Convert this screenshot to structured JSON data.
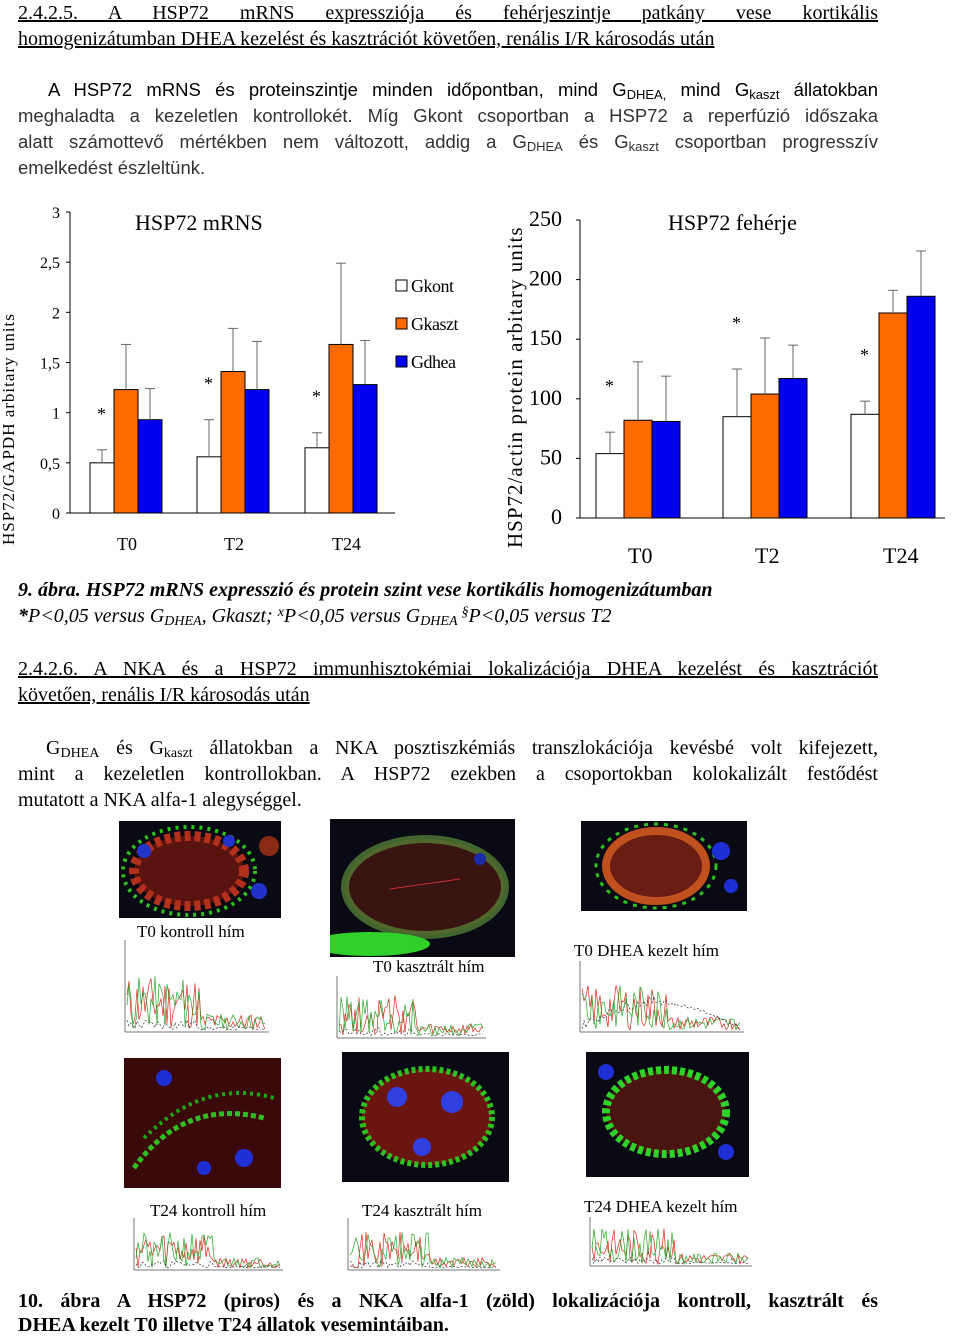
{
  "section1": {
    "heading_line1": "2.4.2.5.  A  HSP72  mRNS  expressziója  és  fehérjeszintje  patkány  vese  kortikális",
    "heading_line2": "homogenizátumban DHEA kezelést és kasztrációt követően, renális I/R károsodás után",
    "para_line1_a": "A HSP72 mRNS és proteinszintje minden időpontban, mind G",
    "para_line1_sub1": "DHEA,",
    "para_line1_b": " mind  G",
    "para_line1_sub2": "kaszt",
    "para_line1_c": " állatokban",
    "para_line2": "meghaladta a kezeletlen kontrollokét. Míg Gkont csoportban a HSP72 a reperfúzió időszaka",
    "para_line3_a": "alatt számottevő mértékben nem változott, addig a G",
    "para_line3_sub1": "DHEA",
    "para_line3_b": " és G",
    "para_line3_sub2": "kaszt",
    "para_line3_c": " csoportban progresszív",
    "para_line4": "emelkedést észleltünk."
  },
  "chart_data": [
    {
      "type": "bar",
      "title": "HSP72 mRNS",
      "ylabel": "HSP72/GAPDH arbitary units",
      "categories": [
        "T0",
        "T2",
        "T24"
      ],
      "ylim": [
        0,
        3
      ],
      "yticks": [
        "0",
        "0,5",
        "1",
        "1,5",
        "2",
        "2,5",
        "3"
      ],
      "series": [
        {
          "name": "Gkont",
          "values": [
            0.5,
            0.56,
            0.65
          ],
          "err": [
            0.13,
            0.37,
            0.15
          ]
        },
        {
          "name": "Gkaszt",
          "values": [
            1.23,
            1.41,
            1.68
          ],
          "err": [
            0.45,
            0.43,
            0.81
          ]
        },
        {
          "name": "Gdhea",
          "values": [
            0.93,
            1.23,
            1.28
          ],
          "err": [
            0.31,
            0.48,
            0.44
          ]
        }
      ],
      "annotations": [
        {
          "category": "T0",
          "text": "*"
        },
        {
          "category": "T2",
          "text": "*"
        },
        {
          "category": "T24",
          "text": "*"
        }
      ],
      "legend": "right"
    },
    {
      "type": "bar",
      "title": "HSP72 fehérje",
      "ylabel": "HSP72/actin protein arbitary units",
      "categories": [
        "T0",
        "T2",
        "T24"
      ],
      "ylim": [
        0,
        250
      ],
      "yticks": [
        "0",
        "50",
        "100",
        "150",
        "200",
        "250"
      ],
      "series": [
        {
          "name": "Gkont",
          "values": [
            54,
            85,
            87
          ],
          "err": [
            18,
            40,
            11
          ]
        },
        {
          "name": "Gkaszt",
          "values": [
            82,
            104,
            172
          ],
          "err": [
            49,
            47,
            19
          ]
        },
        {
          "name": "Gdhea",
          "values": [
            81,
            117,
            186
          ],
          "err": [
            38,
            28,
            38
          ]
        }
      ],
      "annotations": [
        {
          "category": "T0",
          "text": "*"
        },
        {
          "category": "T2",
          "text": "*"
        },
        {
          "category": "T24",
          "text": "*"
        }
      ],
      "legend": "none"
    }
  ],
  "legend": {
    "items": [
      "Gkont",
      "Gkaszt",
      "Gdhea"
    ],
    "colors": [
      "#ffffff",
      "#ff6a00",
      "#0000ee"
    ]
  },
  "figure9": {
    "caption_a": "9. ábra.",
    "caption_b": " HSP72 mRNS expresszió és protein szint vese kortikális homogenizátumban",
    "note_a": "*",
    "note_b": "P<0,05 versus G",
    "note_sub1": "DHEA",
    "note_c": ", Gkaszt; ",
    "note_sup1": "x",
    "note_d": "P<0,05 versus G",
    "note_sub2": "DHEA",
    "note_sup2": "§",
    "note_e": "P<0,05 versus T2"
  },
  "section2": {
    "heading_line1": "2.4.2.6. A NKA és a HSP72 immunhisztokémiai lokalizációja  DHEA kezelést és kasztrációt",
    "heading_line2": "követően, renális I/R károsodás után",
    "para_line1_a": "G",
    "para_line1_sub1": "DHEA",
    "para_line1_b": " és G",
    "para_line1_sub2": "kaszt",
    "para_line1_c": " állatokban a NKA posztiszkémiás transzlokációja kevésbé volt kifejezett,",
    "para_line2": "mint a kezeletlen kontrollokban. A HSP72 ezekben a csoportokban kolokalizált festődést",
    "para_line3": "mutatott a NKA alfa-1 alegységgel."
  },
  "micrographs": {
    "labels": [
      "T0 kontroll hím",
      "T0 kasztrált hím",
      "T0 DHEA kezelt hím",
      "T24 kontroll hím",
      "T24 kasztrált hím",
      "T24 DHEA kezelt hím"
    ],
    "colors": {
      "hsp72": "#d9221b",
      "nka": "#27c41e",
      "nucleus": "#1f2fd6"
    }
  },
  "figure10": {
    "caption_line1": "10.  ábra  A  HSP72  (piros)  és  a  NKA  alfa-1  (zöld)  lokalizációja  kontroll,  kasztrált  és",
    "caption_line2": "DHEA kezelt T0 illetve T24 állatok vesemintáiban."
  }
}
